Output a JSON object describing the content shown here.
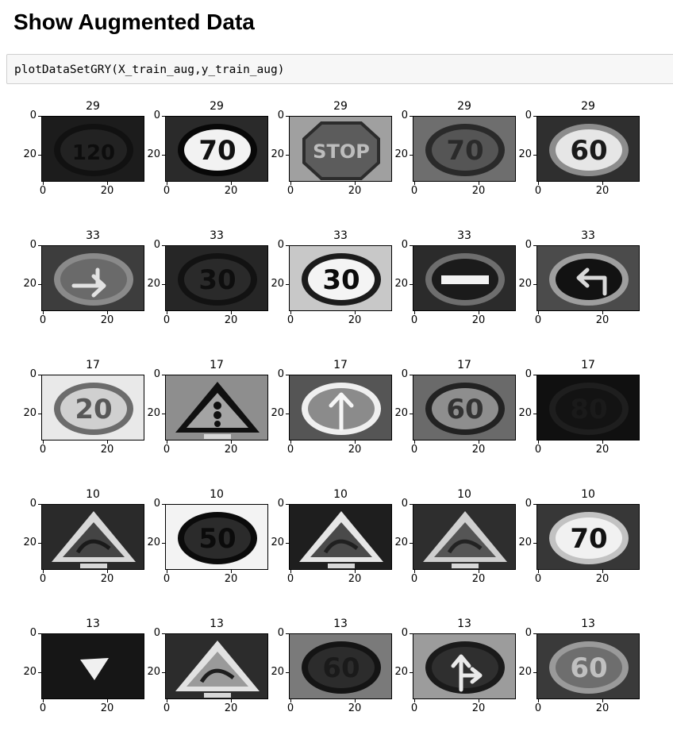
{
  "heading": "Show Augmented Data",
  "code_cell": {
    "source": "plotDataSetGRY(X_train_aug,y_train_aug)"
  },
  "axis_ticks": {
    "x": [
      "0",
      "20"
    ],
    "y": [
      "0",
      "20"
    ]
  },
  "rows": [
    {
      "label": "29",
      "signs": [
        {
          "glyph": "120",
          "shape": "circle",
          "bg": "#1c1c1c",
          "fill": "#222222",
          "ring": "#111111",
          "text": "#0d0d0d"
        },
        {
          "glyph": "70",
          "shape": "circle",
          "bg": "#2a2a2a",
          "fill": "#f2f2f2",
          "ring": "#080808",
          "text": "#111111"
        },
        {
          "glyph": "STOP",
          "shape": "octagon",
          "bg": "#a0a0a0",
          "fill": "#5c5c5c",
          "ring": "#2c2c2c",
          "text": "#bdbdbd"
        },
        {
          "glyph": "70",
          "shape": "circle",
          "bg": "#6e6e6e",
          "fill": "#555555",
          "ring": "#2a2a2a",
          "text": "#2a2a2a"
        },
        {
          "glyph": "60",
          "shape": "circle",
          "bg": "#2f2f2f",
          "fill": "#e6e6e6",
          "ring": "#8c8c8c",
          "text": "#1a1a1a"
        }
      ]
    },
    {
      "label": "33",
      "signs": [
        {
          "glyph": "arrow-right",
          "shape": "circle-arrow",
          "bg": "#3d3d3d",
          "fill": "#6a6a6a",
          "ring": "#8a8a8a",
          "text": "#e2e2e2"
        },
        {
          "glyph": "30",
          "shape": "circle",
          "bg": "#262626",
          "fill": "#2a2a2a",
          "ring": "#121212",
          "text": "#0e0e0e"
        },
        {
          "glyph": "30",
          "shape": "circle",
          "bg": "#c8c8c8",
          "fill": "#f4f4f4",
          "ring": "#1b1b1b",
          "text": "#0c0c0c"
        },
        {
          "glyph": "bar",
          "shape": "circle-bar",
          "bg": "#2b2b2b",
          "fill": "#1b1b1b",
          "ring": "#6e6e6e",
          "text": "#f2f2f2"
        },
        {
          "glyph": "arrow-left",
          "shape": "circle-arrow",
          "bg": "#4b4b4b",
          "fill": "#121212",
          "ring": "#9e9e9e",
          "text": "#d9d9d9"
        }
      ]
    },
    {
      "label": "17",
      "signs": [
        {
          "glyph": "20",
          "shape": "circle",
          "bg": "#e9e9e9",
          "fill": "#d0d0d0",
          "ring": "#6c6c6c",
          "text": "#585858"
        },
        {
          "glyph": "!",
          "shape": "triangle",
          "bg": "#8e8e8e",
          "fill": "#a4a4a4",
          "ring": "#101010",
          "text": "#101010"
        },
        {
          "glyph": "arrow-up",
          "shape": "circle-arrow",
          "bg": "#555555",
          "fill": "#8b8b8b",
          "ring": "#efefef",
          "text": "#f5f5f5"
        },
        {
          "glyph": "60",
          "shape": "circle",
          "bg": "#6a6a6a",
          "fill": "#8e8e8e",
          "ring": "#222222",
          "text": "#333333"
        },
        {
          "glyph": "80",
          "shape": "circle",
          "bg": "#101010",
          "fill": "#131313",
          "ring": "#1e1e1e",
          "text": "#1a1a1a"
        }
      ]
    },
    {
      "label": "10",
      "signs": [
        {
          "glyph": "curve",
          "shape": "triangle",
          "bg": "#2a2a2a",
          "fill": "#444444",
          "ring": "#d8d8d8",
          "text": "#1a1a1a"
        },
        {
          "glyph": "50",
          "shape": "circle",
          "bg": "#f3f3f3",
          "fill": "#2b2b2b",
          "ring": "#0b0b0b",
          "text": "#0b0b0b"
        },
        {
          "glyph": "kids",
          "shape": "triangle",
          "bg": "#1e1e1e",
          "fill": "#4a4a4a",
          "ring": "#e6e6e6",
          "text": "#202020"
        },
        {
          "glyph": "curve",
          "shape": "triangle",
          "bg": "#2e2e2e",
          "fill": "#555555",
          "ring": "#cfcfcf",
          "text": "#232323"
        },
        {
          "glyph": "70",
          "shape": "circle",
          "bg": "#373737",
          "fill": "#f1f1f1",
          "ring": "#c2c2c2",
          "text": "#121212"
        }
      ]
    },
    {
      "label": "13",
      "signs": [
        {
          "glyph": "dot",
          "shape": "blob",
          "bg": "#161616",
          "fill": "#f0f0f0",
          "ring": "#161616",
          "text": "#f0f0f0"
        },
        {
          "glyph": "curve",
          "shape": "triangle",
          "bg": "#2c2c2c",
          "fill": "#9a9a9a",
          "ring": "#e2e2e2",
          "text": "#1e1e1e"
        },
        {
          "glyph": "60",
          "shape": "circle",
          "bg": "#7a7a7a",
          "fill": "#2c2c2c",
          "ring": "#141414",
          "text": "#1a1a1a"
        },
        {
          "glyph": "arrow-fork",
          "shape": "circle-arrow",
          "bg": "#9c9c9c",
          "fill": "#2f2f2f",
          "ring": "#1a1a1a",
          "text": "#eaeaea"
        },
        {
          "glyph": "60",
          "shape": "circle",
          "bg": "#3a3a3a",
          "fill": "#6e6e6e",
          "ring": "#9a9a9a",
          "text": "#c0c0c0"
        }
      ]
    }
  ]
}
